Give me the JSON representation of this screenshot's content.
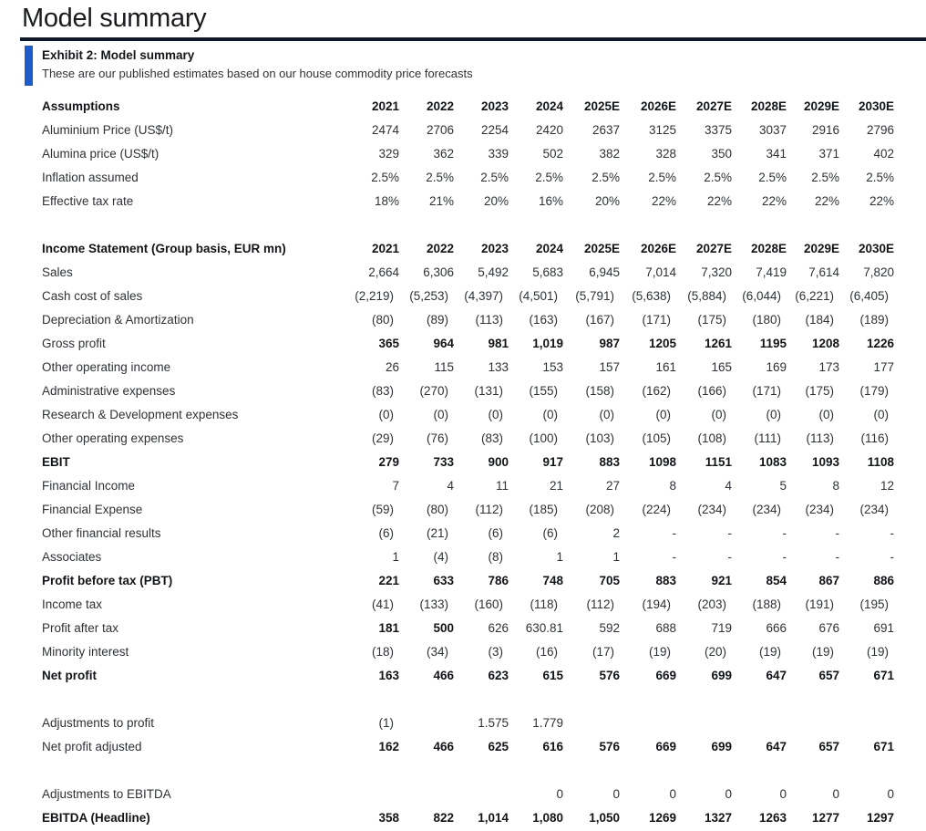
{
  "page_title": "Model summary",
  "exhibit": {
    "title": "Exhibit 2: Model summary",
    "subtitle": "These are our published estimates based on our house commodity price forecasts"
  },
  "colors": {
    "accent_bar": "#1d5cc9",
    "title_rule": "#0c1a2e",
    "bold_text": "#121418",
    "regular_text": "#2e3136"
  },
  "table": {
    "years": [
      "2021",
      "2022",
      "2023",
      "2024",
      "2025E",
      "2026E",
      "2027E",
      "2028E",
      "2029E",
      "2030E"
    ],
    "sections": [
      {
        "header": "Assumptions",
        "rows": [
          {
            "label": "Aluminium Price (US$/t)",
            "values": [
              "2474",
              "2706",
              "2254",
              "2420",
              "2637",
              "3125",
              "3375",
              "3037",
              "2916",
              "2796"
            ]
          },
          {
            "label": "Alumina price (US$/t)",
            "values": [
              "329",
              "362",
              "339",
              "502",
              "382",
              "328",
              "350",
              "341",
              "371",
              "402"
            ]
          },
          {
            "label": "Inflation assumed",
            "values": [
              "2.5%",
              "2.5%",
              "2.5%",
              "2.5%",
              "2.5%",
              "2.5%",
              "2.5%",
              "2.5%",
              "2.5%",
              "2.5%"
            ]
          },
          {
            "label": "Effective tax rate",
            "values": [
              "18%",
              "21%",
              "20%",
              "16%",
              "20%",
              "22%",
              "22%",
              "22%",
              "22%",
              "22%"
            ]
          }
        ]
      },
      {
        "header": "Income Statement (Group basis, EUR mn)",
        "rows": [
          {
            "label": "Sales",
            "values": [
              "2,664",
              "6,306",
              "5,492",
              "5,683",
              "6,945",
              "7,014",
              "7,320",
              "7,419",
              "7,614",
              "7,820"
            ]
          },
          {
            "label": "Cash cost of sales",
            "values": [
              "(2,219)",
              "(5,253)",
              "(4,397)",
              "(4,501)",
              "(5,791)",
              "(5,638)",
              "(5,884)",
              "(6,044)",
              "(6,221)",
              "(6,405)"
            ]
          },
          {
            "label": "Depreciation & Amortization",
            "values": [
              "(80)",
              "(89)",
              "(113)",
              "(163)",
              "(167)",
              "(171)",
              "(175)",
              "(180)",
              "(184)",
              "(189)"
            ]
          },
          {
            "label": "Gross profit",
            "values_bold": true,
            "values": [
              "365",
              "964",
              "981",
              "1,019",
              "987",
              "1205",
              "1261",
              "1195",
              "1208",
              "1226"
            ]
          },
          {
            "label": "Other operating income",
            "values": [
              "26",
              "115",
              "133",
              "153",
              "157",
              "161",
              "165",
              "169",
              "173",
              "177"
            ]
          },
          {
            "label": "Administrative expenses",
            "values": [
              "(83)",
              "(270)",
              "(131)",
              "(155)",
              "(158)",
              "(162)",
              "(166)",
              "(171)",
              "(175)",
              "(179)"
            ]
          },
          {
            "label": "Research & Development expenses",
            "values": [
              "(0)",
              "(0)",
              "(0)",
              "(0)",
              "(0)",
              "(0)",
              "(0)",
              "(0)",
              "(0)",
              "(0)"
            ]
          },
          {
            "label": "Other operating expenses",
            "values": [
              "(29)",
              "(76)",
              "(83)",
              "(100)",
              "(103)",
              "(105)",
              "(108)",
              "(111)",
              "(113)",
              "(116)"
            ]
          },
          {
            "label": "EBIT",
            "label_bold": true,
            "values_bold": true,
            "values": [
              "279",
              "733",
              "900",
              "917",
              "883",
              "1098",
              "1151",
              "1083",
              "1093",
              "1108"
            ]
          },
          {
            "label": "Financial Income",
            "values": [
              "7",
              "4",
              "11",
              "21",
              "27",
              "8",
              "4",
              "5",
              "8",
              "12"
            ]
          },
          {
            "label": "Financial Expense",
            "values": [
              "(59)",
              "(80)",
              "(112)",
              "(185)",
              "(208)",
              "(224)",
              "(234)",
              "(234)",
              "(234)",
              "(234)"
            ]
          },
          {
            "label": "Other financial results",
            "values": [
              "(6)",
              "(21)",
              "(6)",
              "(6)",
              "2",
              "-",
              "-",
              "-",
              "-",
              "-"
            ]
          },
          {
            "label": "Associates",
            "values": [
              "1",
              "(4)",
              "(8)",
              "1",
              "1",
              "-",
              "-",
              "-",
              "-",
              "-"
            ]
          },
          {
            "label": "Profit before tax (PBT)",
            "label_bold": true,
            "values_bold": true,
            "values": [
              "221",
              "633",
              "786",
              "748",
              "705",
              "883",
              "921",
              "854",
              "867",
              "886"
            ]
          },
          {
            "label": "Income tax",
            "values": [
              "(41)",
              "(133)",
              "(160)",
              "(118)",
              "(112)",
              "(194)",
              "(203)",
              "(188)",
              "(191)",
              "(195)"
            ]
          },
          {
            "label": "Profit after tax",
            "bold_cells": [
              0,
              1
            ],
            "values": [
              "181",
              "500",
              "626",
              "630.81",
              "592",
              "688",
              "719",
              "666",
              "676",
              "691"
            ]
          },
          {
            "label": "Minority interest",
            "values": [
              "(18)",
              "(34)",
              "(3)",
              "(16)",
              "(17)",
              "(19)",
              "(20)",
              "(19)",
              "(19)",
              "(19)"
            ]
          },
          {
            "label": "Net profit",
            "label_bold": true,
            "values_bold": true,
            "values": [
              "163",
              "466",
              "623",
              "615",
              "576",
              "669",
              "699",
              "647",
              "657",
              "671"
            ]
          }
        ]
      },
      {
        "header": null,
        "rows": [
          {
            "label": "Adjustments to profit",
            "values": [
              "(1)",
              "",
              "1.575",
              "1.779",
              "",
              "",
              "",
              "",
              "",
              ""
            ]
          },
          {
            "label": "Net profit adjusted",
            "values_bold": true,
            "values": [
              "162",
              "466",
              "625",
              "616",
              "576",
              "669",
              "699",
              "647",
              "657",
              "671"
            ]
          }
        ]
      },
      {
        "header": null,
        "rows": [
          {
            "label": "Adjustments to EBITDA",
            "values": [
              "",
              "",
              "",
              "0",
              "0",
              "0",
              "0",
              "0",
              "0",
              "0"
            ]
          },
          {
            "label": "EBITDA (Headline)",
            "label_bold": true,
            "values_bold": true,
            "values": [
              "358",
              "822",
              "1,014",
              "1,080",
              "1,050",
              "1269",
              "1327",
              "1263",
              "1277",
              "1297"
            ]
          }
        ]
      }
    ]
  }
}
